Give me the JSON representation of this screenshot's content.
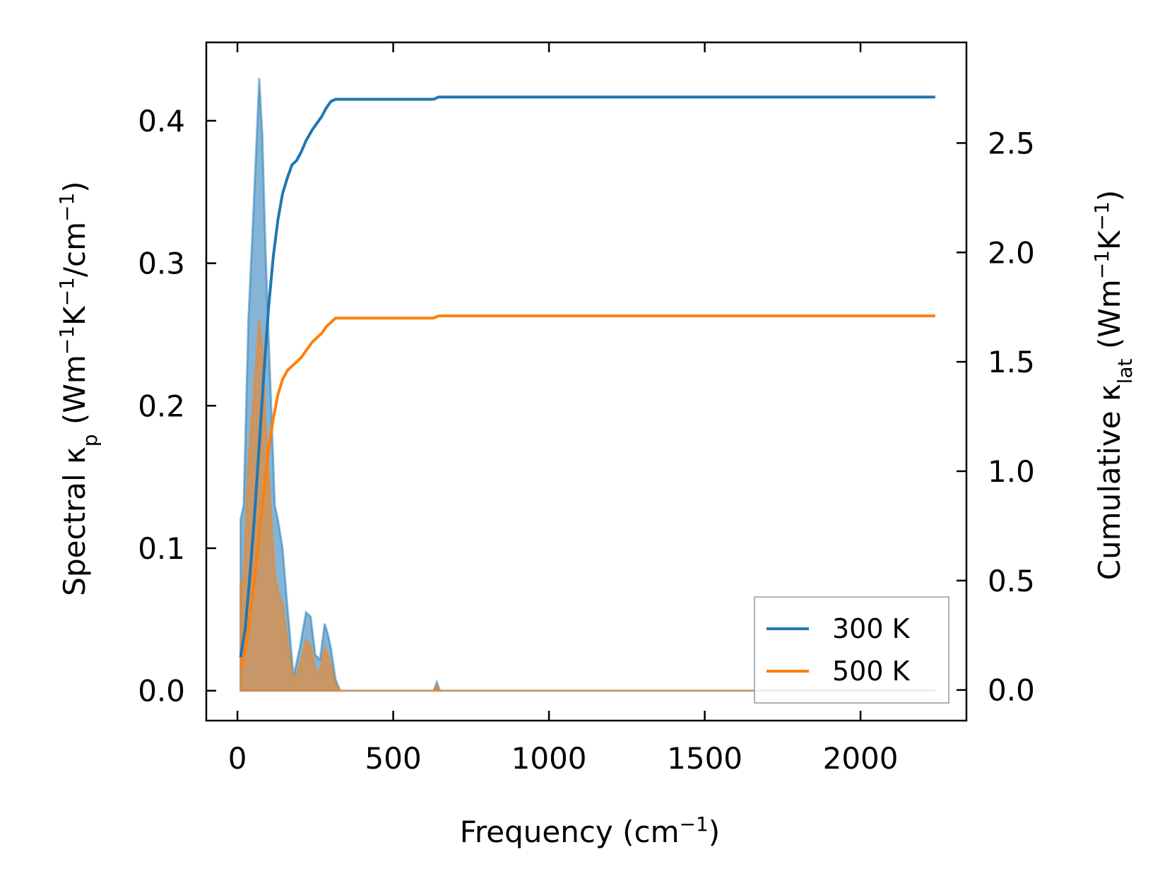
{
  "chart_data": {
    "type": "line",
    "title": "",
    "xlabel": {
      "main": "Frequency (cm",
      "sup": "−1",
      "end": ")"
    },
    "ylabel_left": {
      "main": "Spectral κ",
      "sub": "p",
      "mid": " (Wm",
      "sup1": "−1",
      "k": "K",
      "sup2": "−1",
      "slash": "/cm",
      "sup3": "−1",
      "end": ")"
    },
    "ylabel_right": {
      "main": "Cumulative κ",
      "sub": "lat",
      "mid": " (Wm",
      "sup1": "−1",
      "k": "K",
      "sup2": "−1",
      "end": ")"
    },
    "xlim": [
      -100,
      2340
    ],
    "ylim_left": [
      -0.021,
      0.455
    ],
    "ylim_right": [
      -0.14,
      2.96
    ],
    "xticks": [
      0,
      500,
      1000,
      1500,
      2000
    ],
    "xtick_labels": [
      "0",
      "500",
      "1000",
      "1500",
      "2000"
    ],
    "yticks_left": [
      0.0,
      0.1,
      0.2,
      0.3,
      0.4
    ],
    "ytick_labels_left": [
      "0.0",
      "0.1",
      "0.2",
      "0.3",
      "0.4"
    ],
    "yticks_right": [
      0.0,
      0.5,
      1.0,
      1.5,
      2.0,
      2.5
    ],
    "ytick_labels_right": [
      "0.0",
      "0.5",
      "1.0",
      "1.5",
      "2.0",
      "2.5"
    ],
    "grid": false,
    "legend_position": "bottom-right",
    "series": [
      {
        "name": "300 K",
        "color": "#1f77b4",
        "spectral": {
          "x": [
            10,
            20,
            35,
            50,
            60,
            70,
            80,
            90,
            100,
            110,
            120,
            130,
            145,
            160,
            180,
            200,
            220,
            235,
            250,
            265,
            280,
            290,
            300,
            315,
            330,
            600,
            630,
            640,
            650,
            660,
            2240
          ],
          "y": [
            0.12,
            0.13,
            0.26,
            0.33,
            0.38,
            0.43,
            0.39,
            0.31,
            0.25,
            0.19,
            0.13,
            0.12,
            0.1,
            0.06,
            0.01,
            0.03,
            0.055,
            0.052,
            0.025,
            0.022,
            0.047,
            0.04,
            0.03,
            0.008,
            0.0,
            0.0,
            0.0,
            0.006,
            0.0,
            0.0,
            0.0
          ]
        },
        "cumulative": {
          "x": [
            10,
            25,
            40,
            55,
            70,
            85,
            100,
            115,
            130,
            145,
            160,
            175,
            190,
            205,
            220,
            240,
            255,
            270,
            285,
            300,
            315,
            330,
            630,
            645,
            660,
            2240
          ],
          "y": [
            0.15,
            0.28,
            0.52,
            0.8,
            1.12,
            1.45,
            1.75,
            1.98,
            2.15,
            2.27,
            2.34,
            2.4,
            2.42,
            2.46,
            2.51,
            2.56,
            2.59,
            2.62,
            2.66,
            2.69,
            2.7,
            2.7,
            2.7,
            2.71,
            2.71,
            2.71
          ]
        }
      },
      {
        "name": "500 K",
        "color": "#ff7f0e",
        "spectral": {
          "x": [
            10,
            20,
            35,
            50,
            60,
            70,
            80,
            90,
            100,
            110,
            120,
            130,
            145,
            160,
            180,
            200,
            220,
            235,
            250,
            265,
            280,
            290,
            300,
            315,
            330,
            600,
            630,
            640,
            650,
            660,
            2240
          ],
          "y": [
            0.075,
            0.08,
            0.16,
            0.2,
            0.23,
            0.26,
            0.24,
            0.19,
            0.155,
            0.115,
            0.08,
            0.07,
            0.06,
            0.036,
            0.006,
            0.018,
            0.035,
            0.032,
            0.015,
            0.013,
            0.03,
            0.025,
            0.018,
            0.005,
            0.0,
            0.0,
            0.0,
            0.004,
            0.0,
            0.0,
            0.0
          ]
        },
        "cumulative": {
          "x": [
            10,
            25,
            40,
            55,
            70,
            85,
            100,
            115,
            130,
            145,
            160,
            175,
            190,
            205,
            220,
            240,
            255,
            270,
            285,
            300,
            315,
            330,
            630,
            645,
            660,
            2240
          ],
          "y": [
            0.1,
            0.18,
            0.33,
            0.51,
            0.71,
            0.91,
            1.1,
            1.24,
            1.35,
            1.42,
            1.46,
            1.48,
            1.5,
            1.52,
            1.55,
            1.59,
            1.61,
            1.63,
            1.66,
            1.68,
            1.7,
            1.7,
            1.7,
            1.71,
            1.71,
            1.71
          ]
        }
      }
    ]
  }
}
